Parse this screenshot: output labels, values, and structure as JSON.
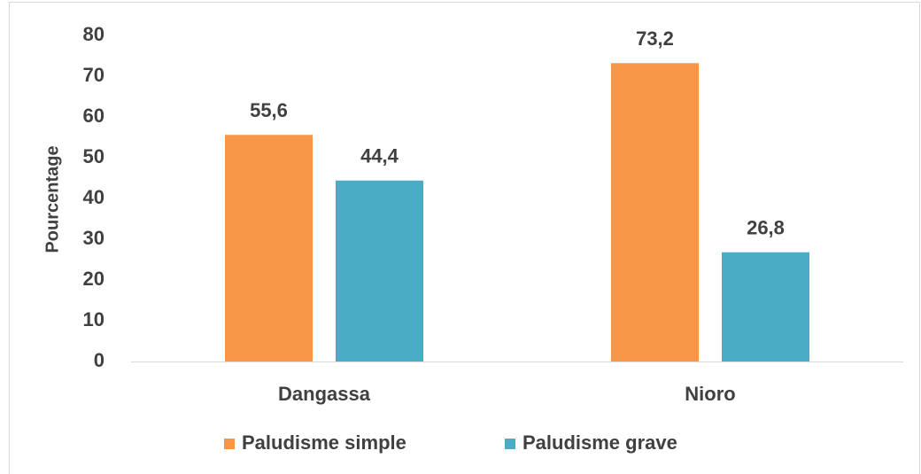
{
  "chart_data": {
    "type": "bar",
    "categories": [
      "Dangassa",
      "Nioro"
    ],
    "series": [
      {
        "name": "Paludisme simple",
        "color": "#f79646",
        "values": [
          55.6,
          73.2
        ],
        "value_labels": [
          "55,6",
          "73,2"
        ]
      },
      {
        "name": "Paludisme grave",
        "color": "#4bacc6",
        "values": [
          44.4,
          26.8
        ],
        "value_labels": [
          "44,4",
          "26,8"
        ]
      }
    ],
    "y_label": "Pourcentage",
    "ylim": [
      0,
      80
    ],
    "yticks": [
      0,
      10,
      20,
      30,
      40,
      50,
      60,
      70,
      80
    ],
    "grid": false,
    "legend": "bottom"
  }
}
